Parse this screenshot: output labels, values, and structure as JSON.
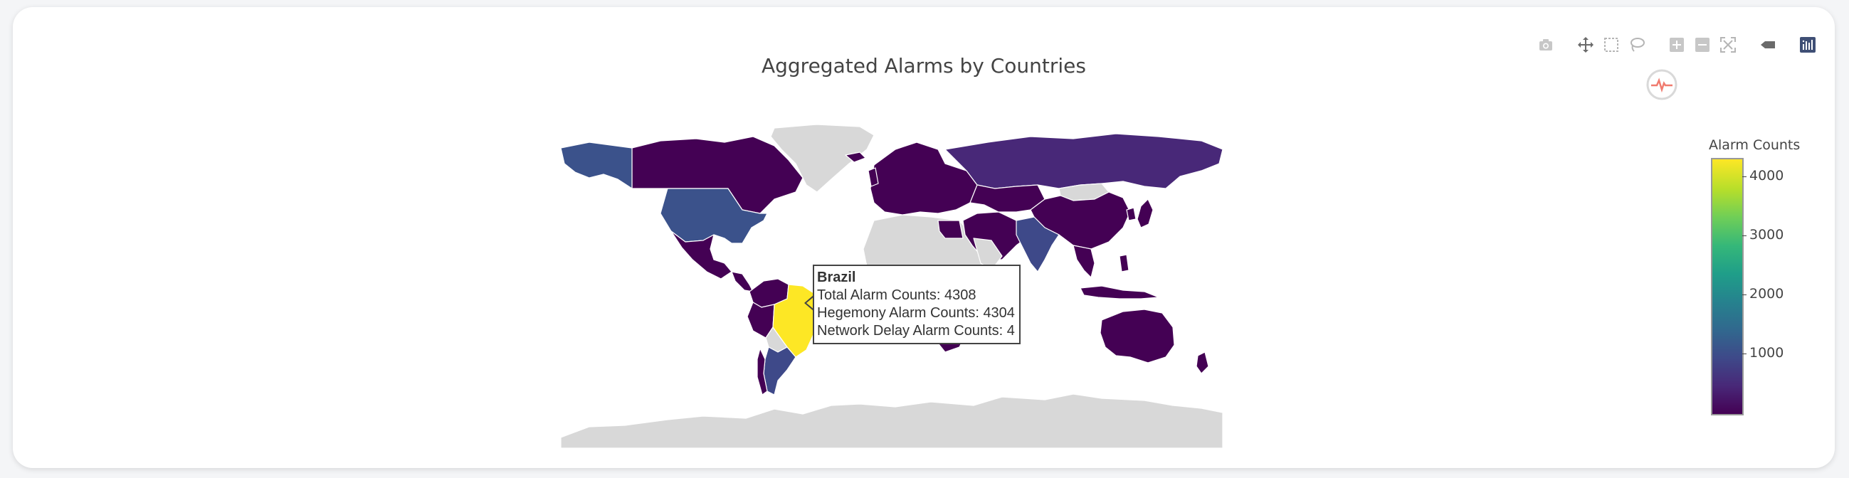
{
  "chart": {
    "title": "Aggregated Alarms by Countries"
  },
  "modebar": {
    "buttons": [
      {
        "name": "camera-icon",
        "label": "Download plot as a png"
      },
      {
        "name": "pan-icon",
        "label": "Pan"
      },
      {
        "name": "box-select-icon",
        "label": "Box Select"
      },
      {
        "name": "lasso-select-icon",
        "label": "Lasso Select"
      },
      {
        "name": "zoom-in-icon",
        "label": "Zoom in"
      },
      {
        "name": "zoom-out-icon",
        "label": "Zoom out"
      },
      {
        "name": "reset-view-icon",
        "label": "Reset view"
      },
      {
        "name": "show-closest-icon",
        "label": "Show closest data on hover"
      },
      {
        "name": "plotly-logo-icon",
        "label": "Produced with Plotly"
      }
    ]
  },
  "colorbar": {
    "title": "Alarm Counts",
    "ticks": [
      "4000",
      "3000",
      "2000",
      "1000"
    ],
    "tick_values": [
      4000,
      3000,
      2000,
      1000
    ],
    "range": [
      0,
      4308
    ],
    "colorscale": "viridis"
  },
  "tooltip": {
    "country": "Brazil",
    "lines": [
      "Total Alarm Counts: 4308",
      "Hegemony Alarm Counts: 4304",
      "Network Delay Alarm Counts: 4"
    ]
  },
  "chart_data": {
    "type": "choropleth",
    "title": "Aggregated Alarms by Countries",
    "colorbar_title": "Alarm Counts",
    "zrange": [
      0,
      4308
    ],
    "colors": {
      "no_data": "#d8d8d8",
      "low": "#440154",
      "mid_low": "#3b528b",
      "high": "#fde725",
      "border": "#ffffff"
    },
    "countries": [
      {
        "name": "Brazil",
        "total": 4308,
        "hegemony": 4304,
        "network_delay": 4
      },
      {
        "name": "United States",
        "total": 1100
      },
      {
        "name": "Canada",
        "total": 50
      },
      {
        "name": "Russia",
        "total": 200
      },
      {
        "name": "Australia",
        "total": 80
      },
      {
        "name": "China",
        "total": 60
      },
      {
        "name": "India",
        "total": 500
      }
    ]
  }
}
